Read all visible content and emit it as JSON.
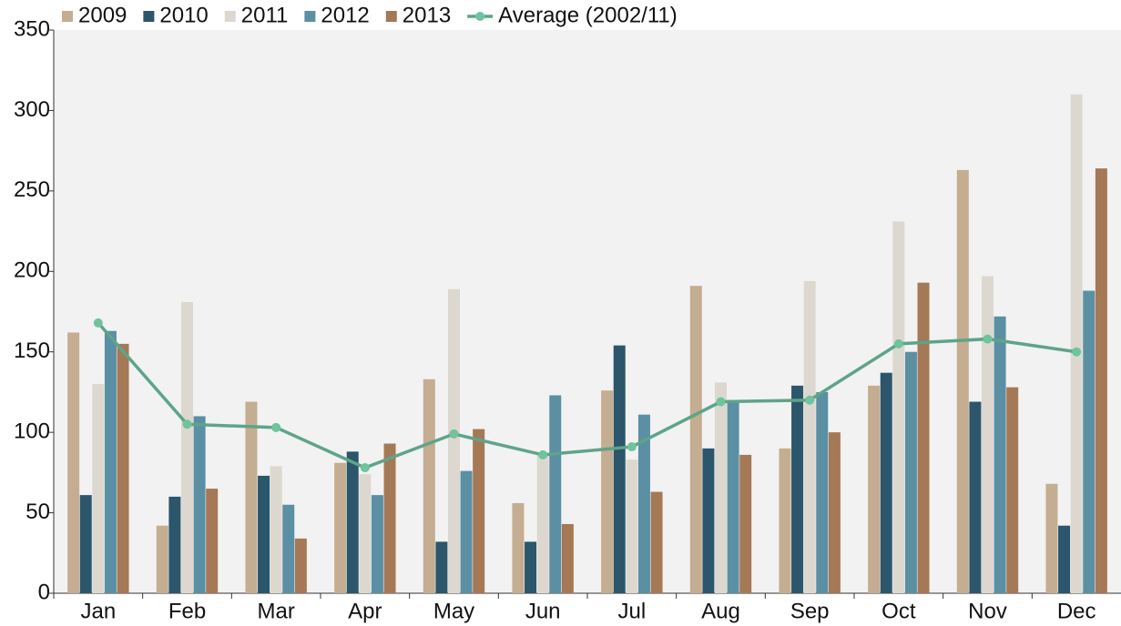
{
  "chart_data": {
    "type": "bar",
    "categories": [
      "Jan",
      "Feb",
      "Mar",
      "Apr",
      "May",
      "Jun",
      "Jul",
      "Aug",
      "Sep",
      "Oct",
      "Nov",
      "Dec"
    ],
    "series": [
      {
        "name": "2009",
        "color": "#c4ad91",
        "values": [
          162,
          42,
          119,
          81,
          133,
          56,
          126,
          191,
          90,
          129,
          263,
          68
        ]
      },
      {
        "name": "2010",
        "color": "#2b566b",
        "values": [
          61,
          60,
          73,
          88,
          32,
          32,
          154,
          90,
          129,
          137,
          119,
          42
        ]
      },
      {
        "name": "2011",
        "color": "#dcd8d0",
        "values": [
          130,
          181,
          79,
          74,
          189,
          87,
          83,
          131,
          194,
          231,
          197,
          310
        ]
      },
      {
        "name": "2012",
        "color": "#5b8fa3",
        "values": [
          163,
          110,
          55,
          61,
          76,
          123,
          111,
          120,
          125,
          150,
          172,
          188
        ]
      },
      {
        "name": "2013",
        "color": "#a57856",
        "values": [
          155,
          65,
          34,
          93,
          102,
          43,
          63,
          86,
          100,
          193,
          128,
          264
        ]
      },
      {
        "name": "Average (2002/11)",
        "type": "line",
        "color": "#5ea488",
        "marker_color": "#6fc39d",
        "values": [
          168,
          105,
          103,
          78,
          99,
          86,
          91,
          119,
          120,
          155,
          158,
          150
        ]
      }
    ],
    "ylim": [
      0,
      350
    ],
    "yticks": [
      0,
      50,
      100,
      150,
      200,
      250,
      300,
      350
    ],
    "legend": "top-left",
    "plot_background": "#f2f2f2"
  }
}
